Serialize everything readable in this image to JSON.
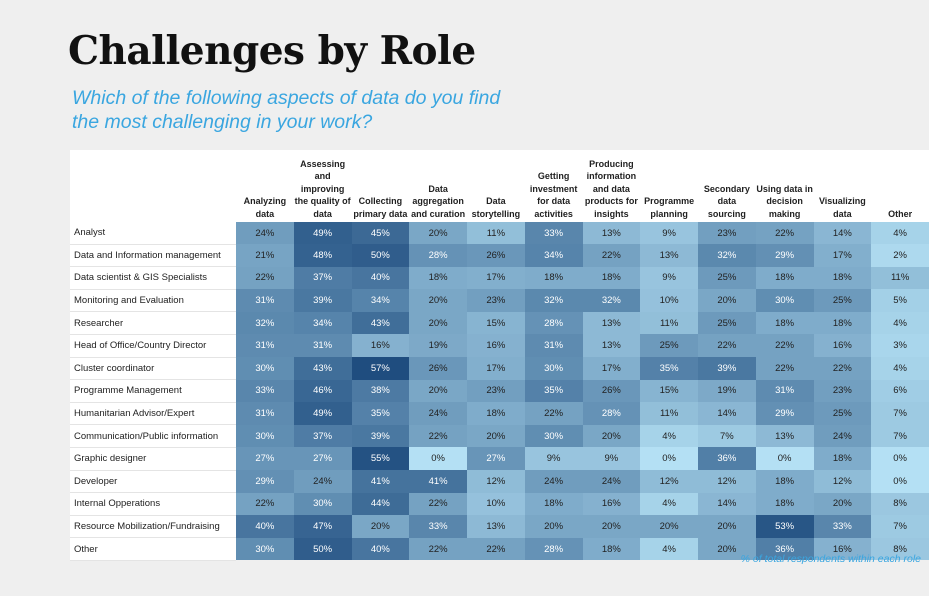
{
  "title": "Challenges by Role",
  "subtitle": "Which of the following aspects of data do you find the most challenging in your work?",
  "note": "% of total respondents within each role",
  "colors": {
    "low": "#b4e0f4",
    "high": "#1f4d7f",
    "text_dark": "#222222",
    "text_light": "#ffffff"
  },
  "chart_data": {
    "type": "heatmap",
    "title": "Challenges by Role",
    "columns": [
      "Analyzing data",
      "Assessing and improving the quality of data",
      "Collecting primary data",
      "Data aggregation and curation",
      "Data storytelling",
      "Getting investment for data activities",
      "Producing information and data products for insights",
      "Programme planning",
      "Secondary data sourcing",
      "Using data in decision making",
      "Visualizing data",
      "Other"
    ],
    "rows": [
      "Analyst",
      "Data and Information management",
      "Data scientist & GIS Specialists",
      "Monitoring and Evaluation",
      "Researcher",
      "Head of Office/Country Director",
      "Cluster coordinator",
      "Programme Management",
      "Humanitarian Advisor/Expert",
      "Communication/Public information",
      "Graphic designer",
      "Developer",
      "Internal Opperations",
      "Resource Mobilization/Fundraising",
      "Other"
    ],
    "unit": "%",
    "values": [
      [
        24,
        49,
        45,
        20,
        11,
        33,
        13,
        9,
        23,
        22,
        14,
        4
      ],
      [
        21,
        48,
        50,
        28,
        26,
        34,
        22,
        13,
        32,
        29,
        17,
        2
      ],
      [
        22,
        37,
        40,
        18,
        17,
        18,
        18,
        9,
        25,
        18,
        18,
        11
      ],
      [
        31,
        39,
        34,
        20,
        23,
        32,
        32,
        10,
        20,
        30,
        25,
        5
      ],
      [
        32,
        34,
        43,
        20,
        15,
        28,
        13,
        11,
        25,
        18,
        18,
        4
      ],
      [
        31,
        31,
        16,
        19,
        16,
        31,
        13,
        25,
        22,
        22,
        16,
        3
      ],
      [
        30,
        43,
        57,
        26,
        17,
        30,
        17,
        35,
        39,
        22,
        22,
        4
      ],
      [
        33,
        46,
        38,
        20,
        23,
        35,
        26,
        15,
        19,
        31,
        23,
        6
      ],
      [
        31,
        49,
        35,
        24,
        18,
        22,
        28,
        11,
        14,
        29,
        25,
        7
      ],
      [
        30,
        37,
        39,
        22,
        20,
        30,
        20,
        4,
        7,
        13,
        24,
        7
      ],
      [
        27,
        27,
        55,
        0,
        27,
        9,
        9,
        0,
        36,
        0,
        18,
        0
      ],
      [
        29,
        24,
        41,
        41,
        12,
        24,
        24,
        12,
        12,
        18,
        12,
        0
      ],
      [
        22,
        30,
        44,
        22,
        10,
        18,
        16,
        4,
        14,
        18,
        20,
        8
      ],
      [
        40,
        47,
        20,
        33,
        13,
        20,
        20,
        20,
        20,
        53,
        33,
        7
      ],
      [
        30,
        50,
        40,
        22,
        22,
        28,
        18,
        4,
        20,
        36,
        16,
        8
      ]
    ],
    "range": [
      0,
      57
    ]
  }
}
